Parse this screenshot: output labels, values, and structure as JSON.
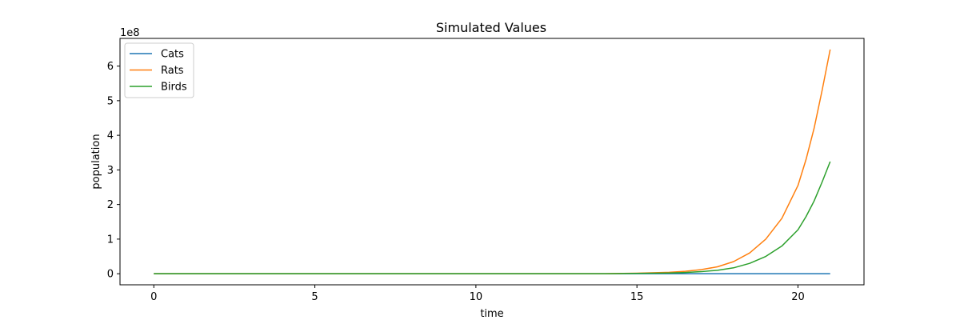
{
  "chart_data": {
    "type": "line",
    "title": "Simulated Values",
    "xlabel": "time",
    "ylabel": "population",
    "y_offset_text": "1e8",
    "y_scale_factor": 100000000,
    "xlim": [
      -1.05,
      22.05
    ],
    "ylim": [
      -32000000.0,
      680000000.0
    ],
    "x_ticks": [
      0,
      5,
      10,
      15,
      20
    ],
    "y_ticks": [
      0,
      1,
      2,
      3,
      4,
      5,
      6
    ],
    "grid": false,
    "legend_position": "upper-left",
    "x": [
      0,
      14,
      15,
      16,
      16.5,
      17,
      17.5,
      18,
      18.5,
      19,
      19.5,
      20,
      20.25,
      20.5,
      20.75,
      21
    ],
    "series": [
      {
        "name": "Cats",
        "color": "#1f77b4",
        "values": [
          0,
          0,
          0,
          0,
          0,
          0,
          0,
          0,
          0,
          0,
          0,
          0,
          0,
          0,
          0,
          0
        ]
      },
      {
        "name": "Rats",
        "color": "#ff7f0e",
        "values": [
          0,
          0,
          1500000,
          4000000,
          7000000,
          12000000,
          20000000,
          35000000,
          60000000,
          100000000,
          160000000,
          255000000,
          330000000,
          420000000,
          530000000,
          648000000
        ]
      },
      {
        "name": "Birds",
        "color": "#2ca02c",
        "values": [
          0,
          0,
          800000,
          2000000,
          3500000,
          6000000,
          10000000,
          17000000,
          30000000,
          50000000,
          80000000,
          127000000,
          165000000,
          210000000,
          265000000,
          324000000
        ]
      }
    ]
  }
}
